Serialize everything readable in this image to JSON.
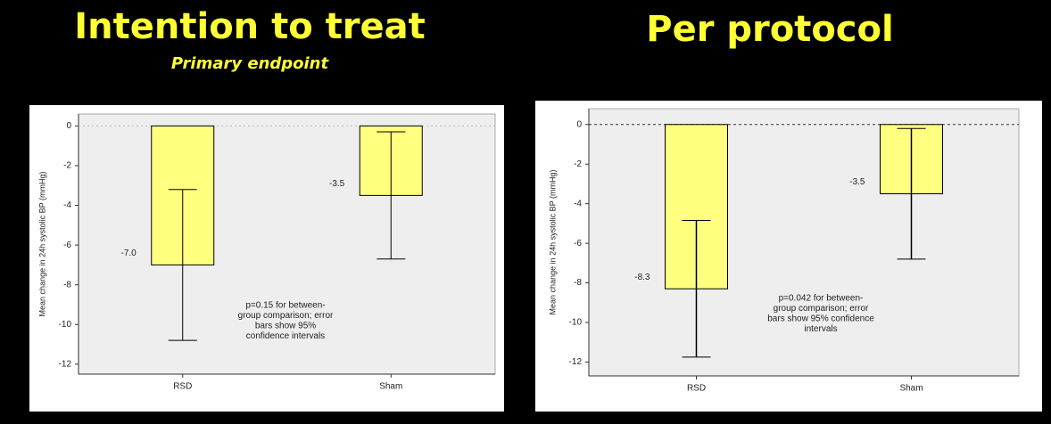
{
  "chart_data": [
    {
      "type": "bar",
      "title": "Intention to treat",
      "subtitle": "Primary endpoint",
      "ylabel": "Mean change in 24h systolic BP (mmHg)",
      "categories": [
        "RSD",
        "Sham"
      ],
      "values": [
        -7,
        -3.5
      ],
      "value_labels": [
        "-7.0",
        "-3.5"
      ],
      "errors": [
        3.8,
        3.2
      ],
      "color": "#ffff80",
      "ylim": [
        -12.5,
        0.6
      ],
      "yticks": [
        0,
        -2,
        -4,
        -6,
        -8,
        -10,
        -12
      ],
      "annotation": [
        "p=0.15 for between-",
        "group comparison; error",
        "bars show 95%",
        "confidence intervals"
      ]
    },
    {
      "type": "bar",
      "title": "Per protocol",
      "ylabel": "Mean change in 24h systolic BP (mmHg)",
      "categories": [
        "RSD",
        "Sham"
      ],
      "values": [
        -8.3,
        -3.5
      ],
      "value_labels": [
        "-8.3",
        "-3.5"
      ],
      "errors": [
        3.45,
        3.3
      ],
      "color": "#ffff80",
      "ylim": [
        -12.7,
        0.8
      ],
      "yticks": [
        0,
        -2,
        -4,
        -6,
        -8,
        -10,
        -12
      ],
      "annotation": [
        "p=0.042 for between-",
        "group comparison; error",
        "bars show 95% confidence",
        "intervals"
      ]
    }
  ]
}
